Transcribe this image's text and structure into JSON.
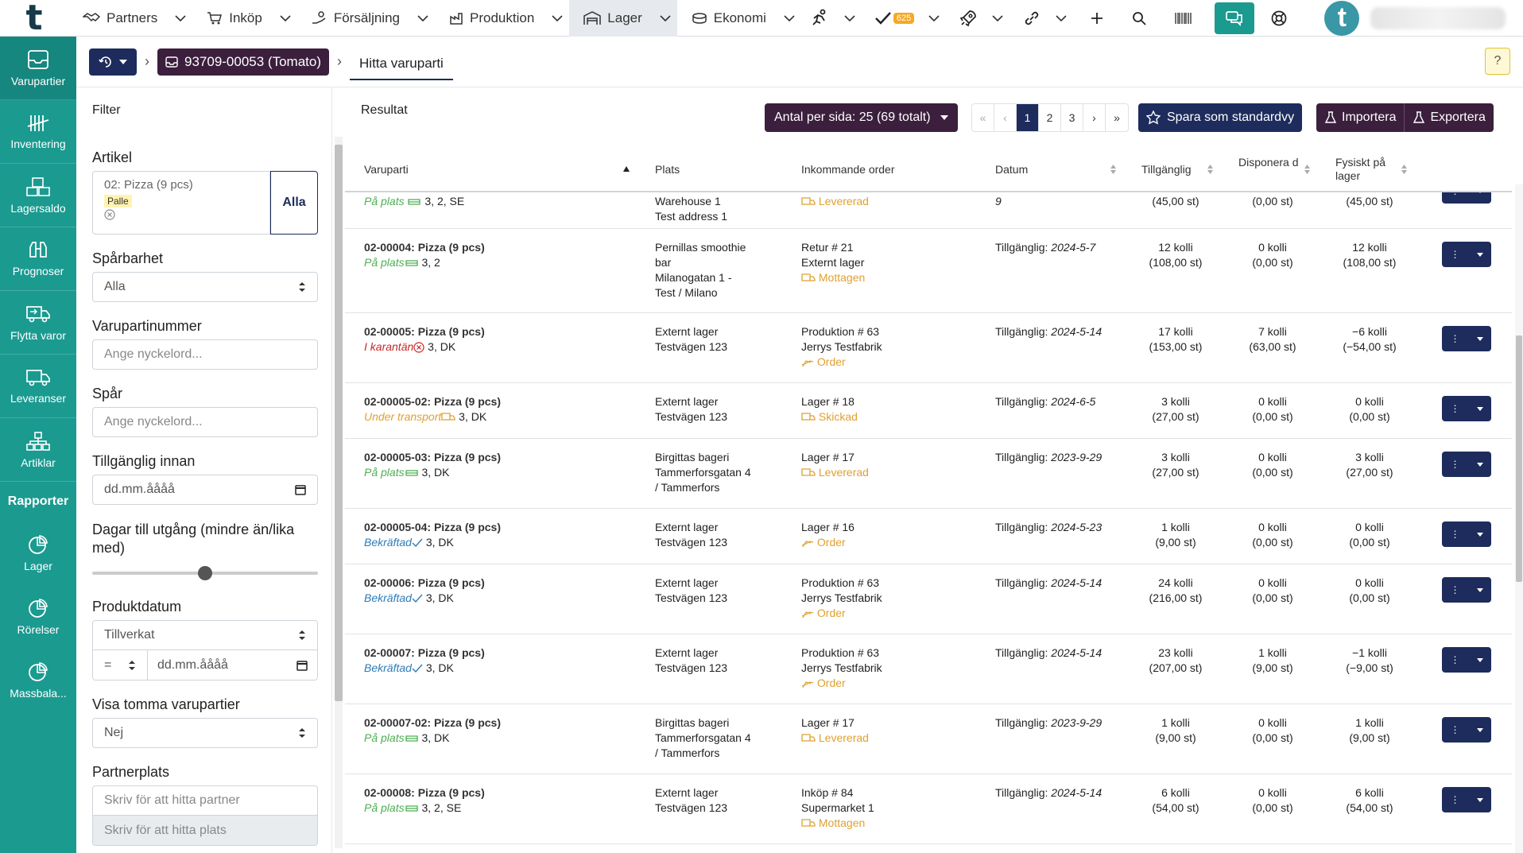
{
  "topnav": {
    "items": [
      {
        "label": "Partners",
        "icon": "handshake-icon"
      },
      {
        "label": "Inköp",
        "icon": "cart-icon"
      },
      {
        "label": "Försäljning",
        "icon": "hand-coins-icon"
      },
      {
        "label": "Produktion",
        "icon": "factory-icon"
      },
      {
        "label": "Lager",
        "icon": "warehouse-icon"
      },
      {
        "label": "Ekonomi",
        "icon": "coins-icon"
      }
    ],
    "tasks_badge": "625",
    "avatar_letter": "t"
  },
  "sidebar": {
    "items": [
      {
        "label": "Varupartier",
        "icon": "inbox-icon"
      },
      {
        "label": "Inventering",
        "icon": "tally-icon"
      },
      {
        "label": "Lagersaldo",
        "icon": "boxes-icon"
      },
      {
        "label": "Prognoser",
        "icon": "binoculars-icon"
      },
      {
        "label": "Flytta varor",
        "icon": "truck-move-icon"
      },
      {
        "label": "Leveranser",
        "icon": "truck-icon"
      },
      {
        "label": "Artiklar",
        "icon": "hierarchy-icon"
      }
    ],
    "reports_title": "Rapporter",
    "reports": [
      {
        "label": "Lager",
        "icon": "pie-chart-icon"
      },
      {
        "label": "Rörelser",
        "icon": "pie-chart-icon"
      },
      {
        "label": "Massbala...",
        "icon": "pie-chart-icon"
      }
    ]
  },
  "breadcrumb": {
    "item_label": "93709-00053 (Tomato)",
    "current": "Hitta varuparti"
  },
  "filter": {
    "title": "Filter",
    "artikel_label": "Artikel",
    "artikel_value": "02: Pizza (9 pcs)",
    "artikel_tag": "Palle",
    "alla_button": "Alla",
    "sparbarhet_label": "Spårbarhet",
    "sparbarhet_value": "Alla",
    "varupartinummer_label": "Varupartinummer",
    "varupartinummer_placeholder": "Ange nyckelord...",
    "spar_label": "Spår",
    "spar_placeholder": "Ange nyckelord...",
    "tillganglig_label": "Tillgänglig innan",
    "date_placeholder": "dd.mm.åååå",
    "dagar_label": "Dagar till utgång (mindre än/lika med)",
    "dagar_slider_fraction": 0.5,
    "produktdatum_label": "Produktdatum",
    "produktdatum_type": "Tillverkat",
    "produktdatum_op": "=",
    "visa_tomma_label": "Visa tomma varupartier",
    "visa_tomma_value": "Nej",
    "partnerplats_label": "Partnerplats",
    "partner_placeholder": "Skriv för att hitta partner",
    "plats_placeholder": "Skriv för att hitta plats"
  },
  "results": {
    "title": "Resultat",
    "per_page": "Antal per sida: 25 (69 totalt)",
    "pages": [
      "1",
      "2",
      "3"
    ],
    "current_page": "1",
    "save_view": "Spara som standardvy",
    "import": "Importera",
    "export": "Exportera",
    "columns": {
      "varuparti": "Varuparti",
      "plats": "Plats",
      "inkommande": "Inkommande order",
      "datum": "Datum",
      "tillganglig": "Tillgänglig",
      "disponerad": "Disponera d",
      "fysiskt": "Fysiskt på lager"
    },
    "partial_row": {
      "status": "På plats",
      "meta": "3, 2, SE",
      "place": [
        "Warehouse 1",
        "Test address 1"
      ],
      "order_status": "Levererad",
      "date_tail": "9",
      "tillg": "(45,00 st)",
      "disp": "(0,00 st)",
      "fys": "(45,00 st)"
    },
    "rows": [
      {
        "name": "02-00004: Pizza (9 pcs)",
        "status": "På plats",
        "meta": "3, 2",
        "place": [
          "Pernillas smoothie",
          "bar",
          "Milanogatan 1 -",
          "Test / Milano"
        ],
        "order": [
          "Retur # 21",
          "Externt lager"
        ],
        "order_status": "Mottagen",
        "date_label": "Tillgänglig:",
        "date": "2024-5-7",
        "tillg": [
          "12 kolli",
          "(108,00 st)"
        ],
        "disp": [
          "0 kolli",
          "(0,00 st)"
        ],
        "fys": [
          "12 kolli",
          "(108,00 st)"
        ]
      },
      {
        "name": "02-00005: Pizza (9 pcs)",
        "status": "I karantän",
        "meta": "3, DK",
        "place": [
          "Externt lager",
          "Testvägen 123"
        ],
        "order": [
          "Produktion # 63",
          "Jerrys Testfabrik"
        ],
        "order_status": "Order",
        "date_label": "Tillgänglig:",
        "date": "2024-5-14",
        "tillg": [
          "17 kolli",
          "(153,00 st)"
        ],
        "disp": [
          "7 kolli",
          "(63,00 st)"
        ],
        "fys": [
          "−6 kolli",
          "(−54,00 st)"
        ]
      },
      {
        "name": "02-00005-02: Pizza (9 pcs)",
        "status": "Under transport",
        "meta": "3, DK",
        "place": [
          "Externt lager",
          "Testvägen 123"
        ],
        "order": [
          "Lager # 18"
        ],
        "order_status": "Skickad",
        "date_label": "Tillgänglig:",
        "date": "2024-6-5",
        "tillg": [
          "3 kolli",
          "(27,00 st)"
        ],
        "disp": [
          "0 kolli",
          "(0,00 st)"
        ],
        "fys": [
          "0 kolli",
          "(0,00 st)"
        ]
      },
      {
        "name": "02-00005-03: Pizza (9 pcs)",
        "status": "På plats",
        "meta": "3, DK",
        "place": [
          "Birgittas bageri",
          "Tammerforsgatan 4",
          "/ Tammerfors"
        ],
        "order": [
          "Lager # 17"
        ],
        "order_status": "Levererad",
        "date_label": "Tillgänglig:",
        "date": "2023-9-29",
        "tillg": [
          "3 kolli",
          "(27,00 st)"
        ],
        "disp": [
          "0 kolli",
          "(0,00 st)"
        ],
        "fys": [
          "3 kolli",
          "(27,00 st)"
        ]
      },
      {
        "name": "02-00005-04: Pizza (9 pcs)",
        "status": "Bekräftad",
        "meta": "3, DK",
        "place": [
          "Externt lager",
          "Testvägen 123"
        ],
        "order": [
          "Lager # 16"
        ],
        "order_status": "Order",
        "date_label": "Tillgänglig:",
        "date": "2024-5-23",
        "tillg": [
          "1 kolli",
          "(9,00 st)"
        ],
        "disp": [
          "0 kolli",
          "(0,00 st)"
        ],
        "fys": [
          "0 kolli",
          "(0,00 st)"
        ]
      },
      {
        "name": "02-00006: Pizza (9 pcs)",
        "status": "Bekräftad",
        "meta": "3, DK",
        "place": [
          "Externt lager",
          "Testvägen 123"
        ],
        "order": [
          "Produktion # 63",
          "Jerrys Testfabrik"
        ],
        "order_status": "Order",
        "date_label": "Tillgänglig:",
        "date": "2024-5-14",
        "tillg": [
          "24 kolli",
          "(216,00 st)"
        ],
        "disp": [
          "0 kolli",
          "(0,00 st)"
        ],
        "fys": [
          "0 kolli",
          "(0,00 st)"
        ]
      },
      {
        "name": "02-00007: Pizza (9 pcs)",
        "status": "Bekräftad",
        "meta": "3, DK",
        "place": [
          "Externt lager",
          "Testvägen 123"
        ],
        "order": [
          "Produktion # 63",
          "Jerrys Testfabrik"
        ],
        "order_status": "Order",
        "date_label": "Tillgänglig:",
        "date": "2024-5-14",
        "tillg": [
          "23 kolli",
          "(207,00 st)"
        ],
        "disp": [
          "1 kolli",
          "(9,00 st)"
        ],
        "fys": [
          "−1 kolli",
          "(−9,00 st)"
        ]
      },
      {
        "name": "02-00007-02: Pizza (9 pcs)",
        "status": "På plats",
        "meta": "3, DK",
        "place": [
          "Birgittas bageri",
          "Tammerforsgatan 4",
          "/ Tammerfors"
        ],
        "order": [
          "Lager # 17"
        ],
        "order_status": "Levererad",
        "date_label": "Tillgänglig:",
        "date": "2023-9-29",
        "tillg": [
          "1 kolli",
          "(9,00 st)"
        ],
        "disp": [
          "0 kolli",
          "(0,00 st)"
        ],
        "fys": [
          "1 kolli",
          "(9,00 st)"
        ]
      },
      {
        "name": "02-00008: Pizza (9 pcs)",
        "status": "På plats",
        "meta": "3, 2, SE",
        "place": [
          "Externt lager",
          "Testvägen 123"
        ],
        "order": [
          "Inköp # 84",
          "Supermarket 1"
        ],
        "order_status": "Mottagen",
        "date_label": "Tillgänglig:",
        "date": "2024-5-14",
        "tillg": [
          "6 kolli",
          "(54,00 st)"
        ],
        "disp": [
          "0 kolli",
          "(0,00 st)"
        ],
        "fys": [
          "6 kolli",
          "(54,00 st)"
        ]
      }
    ]
  },
  "colors": {
    "teal": "#1b9a90",
    "navy": "#1d2c5c",
    "plum": "#3b1f3d",
    "green": "#4caf50",
    "orange": "#e0a030",
    "red": "#c62828",
    "blue": "#2c7bb6"
  }
}
